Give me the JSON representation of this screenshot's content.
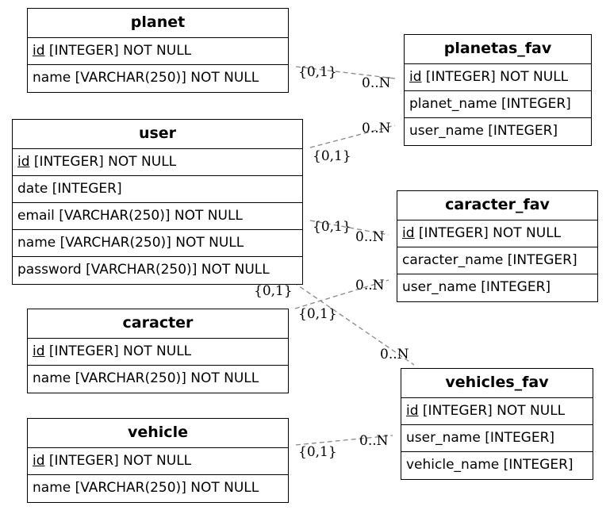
{
  "entities": {
    "planet": {
      "title": "planet",
      "fields": [
        {
          "pk": "id",
          "rest": " [INTEGER] NOT NULL"
        },
        {
          "text": "name [VARCHAR(250)] NOT NULL"
        }
      ]
    },
    "planetas_fav": {
      "title": "planetas_fav",
      "fields": [
        {
          "pk": "id",
          "rest": " [INTEGER] NOT NULL"
        },
        {
          "text": "planet_name [INTEGER]"
        },
        {
          "text": "user_name [INTEGER]"
        }
      ]
    },
    "user": {
      "title": "user",
      "fields": [
        {
          "pk": "id",
          "rest": " [INTEGER] NOT NULL"
        },
        {
          "text": "date [INTEGER]"
        },
        {
          "text": "email [VARCHAR(250)] NOT NULL"
        },
        {
          "text": "name [VARCHAR(250)] NOT NULL"
        },
        {
          "text": "password [VARCHAR(250)] NOT NULL"
        }
      ]
    },
    "caracter_fav": {
      "title": "caracter_fav",
      "fields": [
        {
          "pk": "id",
          "rest": " [INTEGER] NOT NULL"
        },
        {
          "text": "caracter_name [INTEGER]"
        },
        {
          "text": "user_name [INTEGER]"
        }
      ]
    },
    "caracter": {
      "title": "caracter",
      "fields": [
        {
          "pk": "id",
          "rest": " [INTEGER] NOT NULL"
        },
        {
          "text": "name [VARCHAR(250)] NOT NULL"
        }
      ]
    },
    "vehicles_fav": {
      "title": "vehicles_fav",
      "fields": [
        {
          "pk": "id",
          "rest": " [INTEGER] NOT NULL"
        },
        {
          "text": "user_name [INTEGER]"
        },
        {
          "text": "vehicle_name [INTEGER]"
        }
      ]
    },
    "vehicle": {
      "title": "vehicle",
      "fields": [
        {
          "pk": "id",
          "rest": " [INTEGER] NOT NULL"
        },
        {
          "text": "name [VARCHAR(250)] NOT NULL"
        }
      ]
    }
  },
  "relations": [
    {
      "from": "planet",
      "to": "planetas_fav",
      "from_card": "{0,1}",
      "to_card": "0..N"
    },
    {
      "from": "user",
      "to": "planetas_fav",
      "from_card": "{0,1}",
      "to_card": "0..N"
    },
    {
      "from": "user",
      "to": "caracter_fav",
      "from_card": "{0,1}",
      "to_card": "0..N"
    },
    {
      "from": "caracter",
      "to": "caracter_fav",
      "from_card": "{0,1}",
      "to_card": "0..N"
    },
    {
      "from": "user",
      "to": "vehicles_fav",
      "from_card": "{0,1}",
      "to_card": "0..N"
    },
    {
      "from": "vehicle",
      "to": "vehicles_fav",
      "from_card": "{0,1}",
      "to_card": "0..N"
    }
  ]
}
